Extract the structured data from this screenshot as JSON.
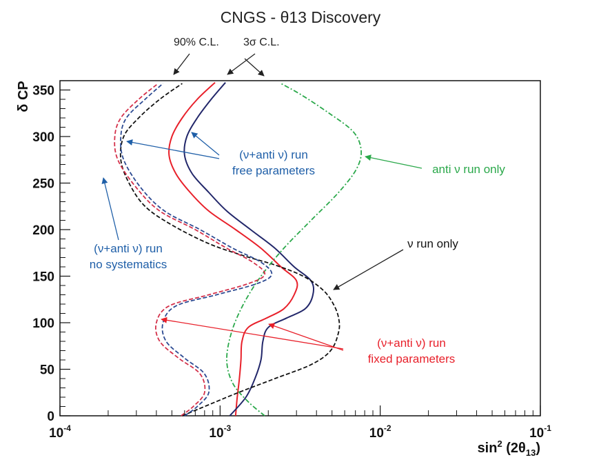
{
  "chart_data": {
    "type": "line",
    "title": "CNGS - θ13 Discovery",
    "xlabel": "sin² (2θ13)",
    "xlabel_parts": {
      "base": "sin",
      "exp": "2",
      "rest": " (2θ",
      "sub": "13",
      "close": ")"
    },
    "ylabel": "δ CP",
    "xscale": "log",
    "xlim": [
      0.0001,
      0.1
    ],
    "ylim": [
      0,
      360
    ],
    "grid": false,
    "x_ticks": [
      {
        "value": 0.0001,
        "base": "10",
        "exp": "-4"
      },
      {
        "value": 0.001,
        "base": "10",
        "exp": "-3"
      },
      {
        "value": 0.01,
        "base": "10",
        "exp": "-2"
      },
      {
        "value": 0.1,
        "base": "10",
        "exp": "-1"
      }
    ],
    "y_ticks": [
      0,
      50,
      100,
      150,
      200,
      250,
      300,
      350
    ],
    "series": [
      {
        "name": "(ν+anti ν) run fixed parameters (3σ)",
        "color": "#e8202a",
        "style": "solid",
        "points": [
          [
            0.00125,
            0
          ],
          [
            0.00128,
            20
          ],
          [
            0.00132,
            40
          ],
          [
            0.00135,
            60
          ],
          [
            0.00137,
            80
          ],
          [
            0.0015,
            95
          ],
          [
            0.00195,
            105
          ],
          [
            0.0025,
            115
          ],
          [
            0.0029,
            130
          ],
          [
            0.003,
            145
          ],
          [
            0.0024,
            160
          ],
          [
            0.0018,
            180
          ],
          [
            0.00125,
            200
          ],
          [
            0.00085,
            220
          ],
          [
            0.00065,
            240
          ],
          [
            0.00053,
            260
          ],
          [
            0.00048,
            280
          ],
          [
            0.0005,
            300
          ],
          [
            0.00058,
            320
          ],
          [
            0.00072,
            340
          ],
          [
            0.00093,
            358
          ]
        ]
      },
      {
        "name": "(ν+anti ν) run free parameters (3σ)",
        "color": "#22276a",
        "style": "solid",
        "points": [
          [
            0.00115,
            0
          ],
          [
            0.00145,
            20
          ],
          [
            0.00165,
            40
          ],
          [
            0.0018,
            60
          ],
          [
            0.00185,
            80
          ],
          [
            0.002,
            95
          ],
          [
            0.0026,
            105
          ],
          [
            0.0034,
            115
          ],
          [
            0.0038,
            130
          ],
          [
            0.0037,
            145
          ],
          [
            0.0029,
            160
          ],
          [
            0.0022,
            180
          ],
          [
            0.00155,
            200
          ],
          [
            0.0011,
            220
          ],
          [
            0.00085,
            240
          ],
          [
            0.00067,
            260
          ],
          [
            0.0006,
            280
          ],
          [
            0.00062,
            300
          ],
          [
            0.00072,
            320
          ],
          [
            0.00088,
            340
          ],
          [
            0.00108,
            358
          ]
        ]
      },
      {
        "name": "ν run only",
        "color": "#111111",
        "style": "dashed",
        "points": [
          [
            0.00058,
            0
          ],
          [
            0.0008,
            10
          ],
          [
            0.0013,
            25
          ],
          [
            0.0022,
            40
          ],
          [
            0.0037,
            55
          ],
          [
            0.0049,
            70
          ],
          [
            0.0055,
            90
          ],
          [
            0.0055,
            105
          ],
          [
            0.0051,
            120
          ],
          [
            0.0044,
            135
          ],
          [
            0.0033,
            150
          ],
          [
            0.0022,
            162
          ],
          [
            0.0014,
            172
          ],
          [
            0.00085,
            185
          ],
          [
            0.0005,
            205
          ],
          [
            0.00034,
            225
          ],
          [
            0.00027,
            250
          ],
          [
            0.00024,
            275
          ],
          [
            0.00025,
            300
          ],
          [
            0.00031,
            320
          ],
          [
            0.00042,
            340
          ],
          [
            0.00058,
            357
          ]
        ]
      },
      {
        "name": "anti ν run only",
        "color": "#2aa84a",
        "style": "dashdot",
        "points": [
          [
            0.0019,
            0
          ],
          [
            0.0015,
            15
          ],
          [
            0.0012,
            35
          ],
          [
            0.0011,
            60
          ],
          [
            0.00118,
            90
          ],
          [
            0.0014,
            120
          ],
          [
            0.0018,
            150
          ],
          [
            0.0025,
            180
          ],
          [
            0.0037,
            210
          ],
          [
            0.0055,
            240
          ],
          [
            0.0071,
            265
          ],
          [
            0.0076,
            285
          ],
          [
            0.0068,
            305
          ],
          [
            0.0048,
            325
          ],
          [
            0.0032,
            345
          ],
          [
            0.0024,
            357
          ]
        ]
      },
      {
        "name": "(ν+anti ν) run no systematics (red)",
        "color": "#d4304a",
        "style": "dashed",
        "points": [
          [
            0.00057,
            0
          ],
          [
            0.00068,
            10
          ],
          [
            0.0008,
            25
          ],
          [
            0.00075,
            45
          ],
          [
            0.00055,
            62
          ],
          [
            0.00042,
            80
          ],
          [
            0.0004,
            100
          ],
          [
            0.00048,
            118
          ],
          [
            0.00085,
            130
          ],
          [
            0.0015,
            142
          ],
          [
            0.0019,
            152
          ],
          [
            0.0016,
            165
          ],
          [
            0.0011,
            180
          ],
          [
            0.0007,
            200
          ],
          [
            0.00042,
            220
          ],
          [
            0.0003,
            245
          ],
          [
            0.00023,
            275
          ],
          [
            0.00022,
            300
          ],
          [
            0.00024,
            320
          ],
          [
            0.00031,
            340
          ],
          [
            0.00041,
            357
          ]
        ]
      },
      {
        "name": "(ν+anti ν) run no systematics (blue)",
        "color": "#2c4a92",
        "style": "dashed",
        "points": [
          [
            0.0006,
            0
          ],
          [
            0.00072,
            10
          ],
          [
            0.00085,
            25
          ],
          [
            0.0008,
            45
          ],
          [
            0.0006,
            62
          ],
          [
            0.00046,
            80
          ],
          [
            0.00044,
            100
          ],
          [
            0.00053,
            118
          ],
          [
            0.00095,
            130
          ],
          [
            0.0017,
            142
          ],
          [
            0.0021,
            152
          ],
          [
            0.0018,
            165
          ],
          [
            0.0012,
            180
          ],
          [
            0.00075,
            200
          ],
          [
            0.00045,
            220
          ],
          [
            0.00032,
            245
          ],
          [
            0.00025,
            275
          ],
          [
            0.00024,
            300
          ],
          [
            0.00026,
            320
          ],
          [
            0.00034,
            340
          ],
          [
            0.00044,
            357
          ]
        ]
      }
    ],
    "annotations": [
      {
        "id": "cl90",
        "text": "90% C.L.",
        "color": "#222222"
      },
      {
        "id": "cl3s",
        "text": "3σ C.L.",
        "color": "#222222"
      },
      {
        "id": "free1",
        "text": "(ν+anti ν) run",
        "color": "#1f5fa8"
      },
      {
        "id": "free2",
        "text": "free parameters",
        "color": "#1f5fa8"
      },
      {
        "id": "antinu",
        "text": "anti ν run only",
        "color": "#2aa84a"
      },
      {
        "id": "nosys1",
        "text": "(ν+anti ν) run",
        "color": "#1f5fa8"
      },
      {
        "id": "nosys2",
        "text": "no systematics",
        "color": "#1f5fa8"
      },
      {
        "id": "nu",
        "text": "ν run only",
        "color": "#111111"
      },
      {
        "id": "fixed1",
        "text": "(ν+anti ν) run",
        "color": "#e8202a"
      },
      {
        "id": "fixed2",
        "text": "fixed parameters",
        "color": "#e8202a"
      }
    ]
  }
}
